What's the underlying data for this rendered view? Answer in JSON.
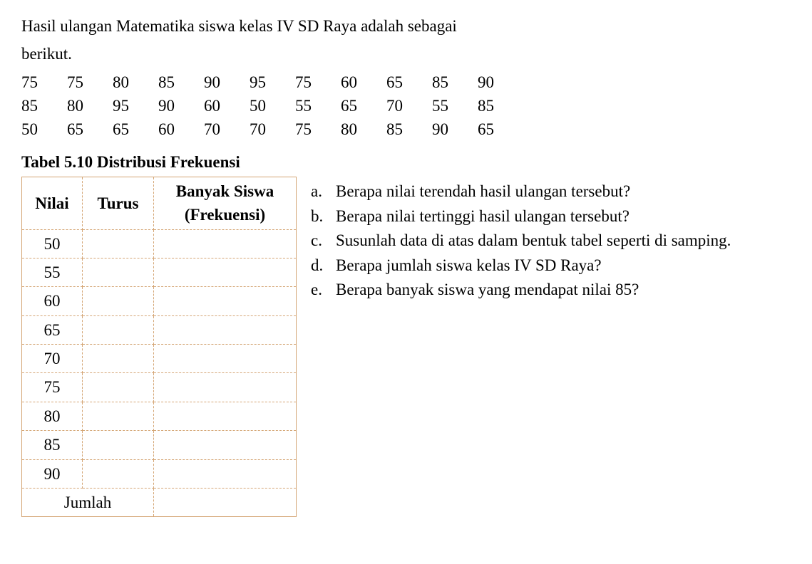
{
  "intro": {
    "line1": "Hasil ulangan Matematika siswa kelas IV SD Raya adalah sebagai",
    "line2": "berikut."
  },
  "dataRows": [
    [
      "75",
      "75",
      "80",
      "85",
      "90",
      "95",
      "75",
      "60",
      "65",
      "85",
      "90"
    ],
    [
      "85",
      "80",
      "95",
      "90",
      "60",
      "50",
      "55",
      "65",
      "70",
      "55",
      "85"
    ],
    [
      "50",
      "65",
      "65",
      "60",
      "70",
      "70",
      "75",
      "80",
      "85",
      "90",
      "65"
    ]
  ],
  "tableTitle": "Tabel 5.10 Distribusi Frekuensi",
  "table": {
    "headers": {
      "nilai": "Nilai",
      "turus": "Turus",
      "banyak": "Banyak Siswa (Frekuensi)"
    },
    "nilaiValues": [
      "50",
      "55",
      "60",
      "65",
      "70",
      "75",
      "80",
      "85",
      "90"
    ],
    "jumlahLabel": "Jumlah",
    "borderColor": "#d4a574"
  },
  "questions": [
    {
      "label": "a.",
      "text": "Berapa nilai terendah hasil ulangan tersebut?"
    },
    {
      "label": "b.",
      "text": "Berapa nilai tertinggi hasil ulangan tersebut?"
    },
    {
      "label": "c.",
      "text": "Susunlah data di atas dalam bentuk tabel seperti di samping."
    },
    {
      "label": "d.",
      "text": "Berapa jumlah siswa kelas IV SD Raya?"
    },
    {
      "label": "e.",
      "text": "Berapa banyak siswa yang mendapat nilai 85?"
    }
  ],
  "styling": {
    "fontSize": 23,
    "fontFamily": "Georgia, Times New Roman, serif",
    "textColor": "#000000",
    "backgroundColor": "#ffffff",
    "tableBorderColor": "#d4a574",
    "pageWidth": 1139,
    "pageHeight": 792
  }
}
